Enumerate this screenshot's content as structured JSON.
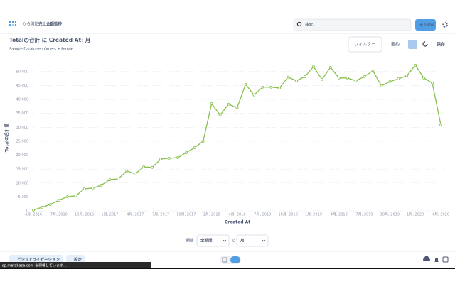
{
  "header": {
    "prefix": "から開始",
    "collection": "売上金額推移",
    "search_placeholder": "検索...",
    "new_button": "New"
  },
  "question": {
    "title": "Totalの合計 に Created At: 月",
    "subtitle": "Sample Database / Orders + People",
    "filter_button": "フィルター",
    "summarize_button": "要約",
    "save_button": "保存"
  },
  "chart_data": {
    "type": "line",
    "x_label": "Created At",
    "y_label": "Totalの合計値",
    "categories": [
      "4月, 2016",
      null,
      null,
      "7月, 2016",
      null,
      null,
      "10月, 2016",
      null,
      null,
      "1月, 2017",
      null,
      null,
      "4月, 2017",
      null,
      null,
      "7月, 2017",
      null,
      null,
      "10月, 2017",
      null,
      null,
      "1月, 2018",
      null,
      null,
      "4月, 2018",
      null,
      null,
      "7月, 2018",
      null,
      null,
      "10月, 2018",
      null,
      null,
      "1月, 2019",
      null,
      null,
      "4月, 2019",
      null,
      null,
      "7月, 2019",
      null,
      null,
      "10月, 2019",
      null,
      null,
      "1月, 2020",
      null,
      null,
      "4月, 2020"
    ],
    "series": [
      {
        "name": "Totalの合計",
        "color": "#88bf4d",
        "values": [
          300,
          1300,
          2300,
          3800,
          5100,
          5400,
          7900,
          8200,
          9200,
          11200,
          11500,
          14300,
          13300,
          15800,
          15600,
          18600,
          18900,
          19100,
          20900,
          22700,
          25000,
          38500,
          34400,
          38300,
          37000,
          45400,
          41600,
          44400,
          44400,
          44100,
          48000,
          46700,
          48200,
          51800,
          47200,
          51500,
          47700,
          47700,
          46700,
          48200,
          50300,
          44900,
          46400,
          47400,
          48500,
          52300,
          47700,
          45900,
          30900
        ]
      }
    ],
    "ylim": [
      0,
      52500
    ],
    "yticks": [
      0,
      {
        "value": 5000,
        "label": "5,000"
      },
      {
        "value": 10000,
        "label": "10,000"
      },
      {
        "value": 15000,
        "label": "15,000"
      },
      {
        "value": 20000,
        "label": "20,000"
      },
      {
        "value": 25000,
        "label": "25,000"
      },
      {
        "value": 30000,
        "label": "30,000"
      },
      {
        "value": 35000,
        "label": "35,000"
      },
      {
        "value": 40000,
        "label": "40,000"
      },
      {
        "value": 45000,
        "label": "45,000"
      },
      {
        "value": 50000,
        "label": "50,000"
      }
    ],
    "grid": true
  },
  "footer": {
    "period_label": "期間",
    "period_value": "全期間",
    "by_label": "で",
    "unit_value": "月",
    "visualization_button": "ビジュアライゼーション",
    "settings_button": "設定",
    "status": "sp.metabase.com を待機しています..."
  }
}
